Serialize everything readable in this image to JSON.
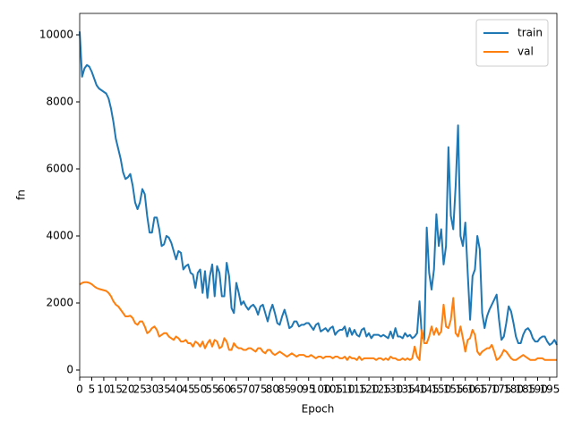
{
  "chart_data": {
    "type": "line",
    "xlabel": "Epoch",
    "ylabel": "fn",
    "x": [
      0,
      1,
      2,
      3,
      4,
      5,
      6,
      7,
      8,
      9,
      10,
      11,
      12,
      13,
      14,
      15,
      16,
      17,
      18,
      19,
      20,
      21,
      22,
      23,
      24,
      25,
      26,
      27,
      28,
      29,
      30,
      31,
      32,
      33,
      34,
      35,
      36,
      37,
      38,
      39,
      40,
      41,
      42,
      43,
      44,
      45,
      46,
      47,
      48,
      49,
      50,
      51,
      52,
      53,
      54,
      55,
      56,
      57,
      58,
      59,
      60,
      61,
      62,
      63,
      64,
      65,
      66,
      67,
      68,
      69,
      70,
      71,
      72,
      73,
      74,
      75,
      76,
      77,
      78,
      79,
      80,
      81,
      82,
      83,
      84,
      85,
      86,
      87,
      88,
      89,
      90,
      91,
      92,
      93,
      94,
      95,
      96,
      97,
      98,
      99,
      100,
      101,
      102,
      103,
      104,
      105,
      106,
      107,
      108,
      109,
      110,
      111,
      112,
      113,
      114,
      115,
      116,
      117,
      118,
      119,
      120,
      121,
      122,
      123,
      124,
      125,
      126,
      127,
      128,
      129,
      130,
      131,
      132,
      133,
      134,
      135,
      136,
      137,
      138,
      139,
      140,
      141,
      142,
      143,
      144,
      145,
      146,
      147,
      148,
      149,
      150,
      151,
      152,
      153,
      154,
      155,
      156,
      157,
      158,
      159,
      160,
      161,
      162,
      163,
      164,
      165,
      166,
      167,
      168,
      169,
      170,
      171,
      172,
      173,
      174,
      175,
      176,
      177,
      178,
      179,
      180,
      181,
      182,
      183,
      184,
      185,
      186,
      187,
      188,
      189,
      190,
      191,
      192,
      193,
      194,
      195,
      196,
      197,
      198
    ],
    "series": [
      {
        "name": "train",
        "color": "#1f77b4",
        "values": [
          10100,
          8750,
          9000,
          9100,
          9050,
          8900,
          8700,
          8500,
          8400,
          8350,
          8300,
          8250,
          8100,
          7800,
          7400,
          6900,
          6600,
          6300,
          5900,
          5700,
          5750,
          5850,
          5500,
          5000,
          4800,
          5000,
          5400,
          5250,
          4600,
          4100,
          4100,
          4550,
          4550,
          4200,
          3700,
          3750,
          4000,
          3950,
          3800,
          3550,
          3300,
          3550,
          3500,
          3000,
          3100,
          3150,
          2900,
          2850,
          2450,
          2900,
          3000,
          2300,
          2950,
          2150,
          2800,
          3150,
          2200,
          3100,
          2900,
          2200,
          2200,
          3200,
          2800,
          1850,
          1700,
          2600,
          2300,
          1950,
          2050,
          1900,
          1800,
          1900,
          1950,
          1850,
          1650,
          1900,
          1950,
          1700,
          1450,
          1750,
          1950,
          1700,
          1400,
          1350,
          1600,
          1800,
          1550,
          1250,
          1300,
          1450,
          1450,
          1300,
          1350,
          1350,
          1400,
          1400,
          1300,
          1200,
          1350,
          1400,
          1150,
          1200,
          1250,
          1150,
          1250,
          1300,
          1050,
          1150,
          1200,
          1200,
          1300,
          1000,
          1250,
          1050,
          1200,
          1050,
          1000,
          1200,
          1250,
          1000,
          1100,
          950,
          1050,
          1050,
          1050,
          1000,
          1050,
          1000,
          950,
          1150,
          950,
          1250,
          1000,
          1000,
          950,
          1100,
          1000,
          1050,
          950,
          1000,
          1100,
          2050,
          1000,
          900,
          4250,
          2900,
          2400,
          3000,
          4650,
          3700,
          4200,
          3150,
          3700,
          6650,
          4600,
          4200,
          5500,
          7300,
          4000,
          3700,
          4400,
          2900,
          1500,
          2800,
          3000,
          4000,
          3600,
          1700,
          1250,
          1600,
          1800,
          1950,
          2100,
          2250,
          1500,
          900,
          1000,
          1400,
          1900,
          1750,
          1400,
          1000,
          800,
          800,
          1050,
          1200,
          1250,
          1150,
          950,
          850,
          850,
          950,
          1000,
          1000,
          850,
          750,
          800,
          900,
          750
        ]
      },
      {
        "name": "val",
        "color": "#ff7f0e",
        "values": [
          2550,
          2600,
          2620,
          2620,
          2600,
          2560,
          2500,
          2450,
          2420,
          2400,
          2380,
          2360,
          2300,
          2200,
          2050,
          1950,
          1900,
          1800,
          1700,
          1600,
          1600,
          1620,
          1550,
          1400,
          1350,
          1450,
          1450,
          1300,
          1100,
          1150,
          1250,
          1300,
          1200,
          1000,
          1050,
          1100,
          1100,
          1000,
          950,
          900,
          1000,
          950,
          850,
          850,
          900,
          800,
          800,
          700,
          850,
          800,
          700,
          850,
          650,
          800,
          900,
          700,
          900,
          850,
          650,
          700,
          950,
          850,
          600,
          600,
          800,
          700,
          650,
          650,
          600,
          600,
          650,
          650,
          600,
          550,
          650,
          650,
          550,
          500,
          600,
          600,
          500,
          450,
          500,
          550,
          500,
          450,
          400,
          450,
          500,
          450,
          400,
          450,
          450,
          450,
          400,
          400,
          450,
          400,
          350,
          400,
          400,
          350,
          400,
          400,
          400,
          350,
          400,
          400,
          350,
          350,
          400,
          300,
          400,
          350,
          350,
          300,
          400,
          300,
          350,
          350,
          350,
          350,
          350,
          300,
          350,
          350,
          300,
          350,
          300,
          400,
          350,
          350,
          300,
          300,
          350,
          300,
          350,
          300,
          350,
          700,
          400,
          300,
          1200,
          800,
          800,
          1000,
          1300,
          1050,
          1250,
          1050,
          1150,
          1950,
          1300,
          1250,
          1500,
          2150,
          1100,
          1000,
          1300,
          950,
          550,
          900,
          950,
          1200,
          1050,
          550,
          450,
          550,
          600,
          650,
          650,
          750,
          550,
          300,
          350,
          450,
          600,
          550,
          450,
          350,
          300,
          300,
          350,
          400,
          450,
          400,
          350,
          300,
          300,
          300,
          350,
          350,
          350,
          300,
          300,
          300,
          300,
          300,
          300
        ]
      }
    ],
    "xlim": [
      0,
      198
    ],
    "ylim": [
      -213,
      10640
    ],
    "xticks": [
      0,
      5,
      10,
      15,
      20,
      25,
      30,
      35,
      40,
      45,
      50,
      55,
      60,
      65,
      70,
      75,
      80,
      85,
      90,
      95,
      100,
      105,
      110,
      115,
      120,
      125,
      130,
      135,
      140,
      145,
      150,
      155,
      160,
      165,
      170,
      175,
      180,
      185,
      190,
      195
    ],
    "yticks": [
      0,
      2000,
      4000,
      6000,
      8000,
      10000
    ],
    "legend": "upper right"
  }
}
